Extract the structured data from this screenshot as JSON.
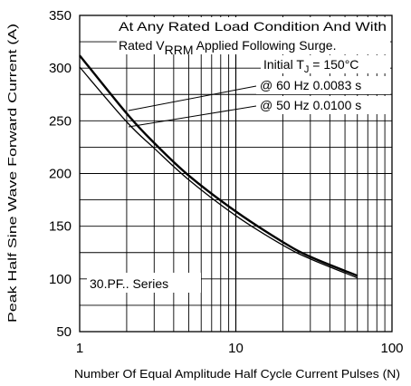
{
  "chart_data": {
    "type": "line",
    "xscale": "log",
    "xlim": [
      1,
      100
    ],
    "ylim": [
      50,
      350
    ],
    "grid": true,
    "xlabel": "Number Of Equal Amplitude Half Cycle Current Pulses (N)",
    "ylabel": "Peak Half Sine Wave Forward Current (A)",
    "x_ticks": [
      "1",
      "10",
      "100"
    ],
    "y_ticks": [
      "50",
      "100",
      "150",
      "200",
      "250",
      "300",
      "350"
    ],
    "series": [
      {
        "name": "@ 60 Hz 0.0083 s",
        "x": [
          1,
          2,
          3,
          5,
          10,
          20,
          30,
          60
        ],
        "y": [
          312,
          257,
          229,
          198,
          164,
          135,
          121,
          103
        ]
      },
      {
        "name": "@ 50 Hz 0.0100 s",
        "x": [
          1,
          2,
          3,
          5,
          10,
          20,
          30,
          60
        ],
        "y": [
          301,
          249,
          224,
          194,
          160,
          132,
          119,
          101
        ]
      }
    ],
    "annotations": {
      "line1": "At Any Rated Load Condition And With",
      "line2_pre": "Rated V",
      "line2_sub": "RRM",
      "line2_post": " Applied Following Surge.",
      "line3_pre": "Initial T",
      "line3_sub": "J",
      "line3_post": " = 150°C",
      "series_label_60": "@ 60 Hz 0.0083 s",
      "series_label_50": "@ 50 Hz 0.0100 s",
      "series_name": "30.PF.. Series"
    }
  }
}
